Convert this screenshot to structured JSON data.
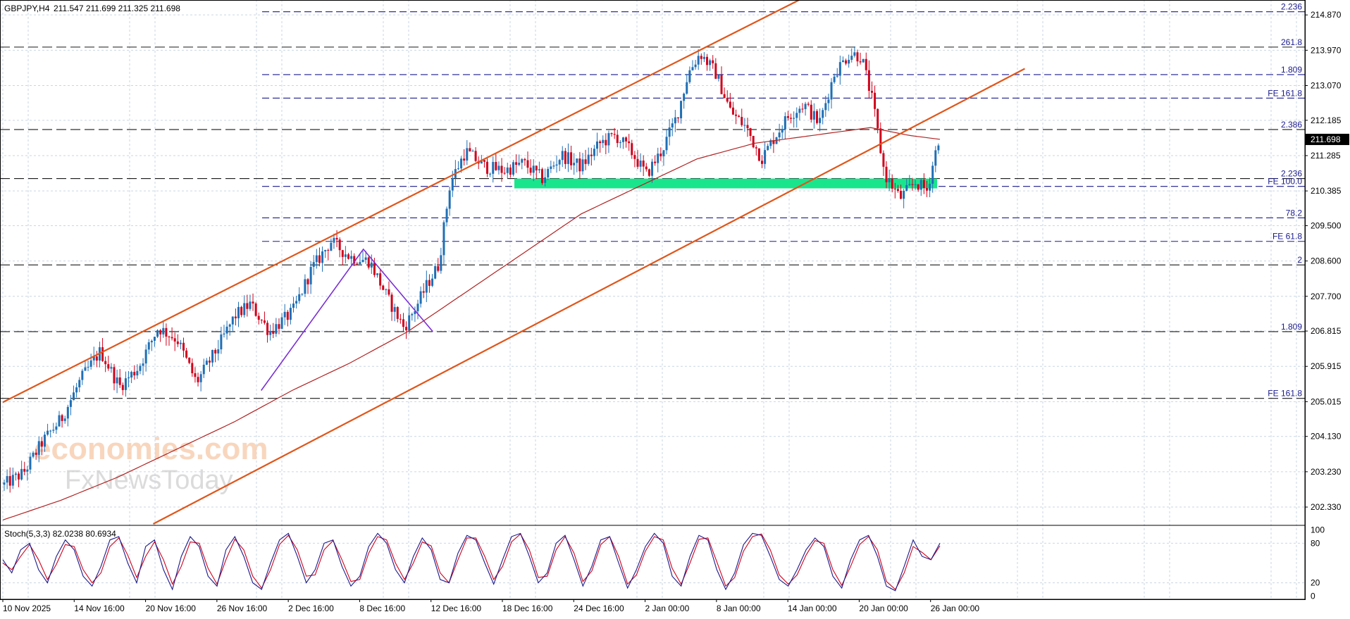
{
  "header": {
    "symbol": "GBPJPY,H4",
    "ohlc": "211.547 211.699 211.325 211.698"
  },
  "watermark": {
    "line1": "economies.com",
    "line2": "FxNewsToday"
  },
  "colors": {
    "bull": "#1f6fb5",
    "bear": "#d0021b",
    "channel": "#e0561a",
    "ma": "#b22222",
    "zone": "#19e68c",
    "zigzag": "#7b2fd4",
    "level_line": "#1a1a8c",
    "stoch_k": "#1a1a8c",
    "stoch_d": "#d0021b",
    "grid": "#c9d6e3",
    "price_tag_bg": "#000000",
    "price_tag_fg": "#ffffff"
  },
  "chart_data": [
    {
      "type": "candlestick",
      "title": "",
      "y_axis": {
        "min": 201.9,
        "max": 215.25,
        "ticks": [
          "214.870",
          "213.970",
          "213.070",
          "212.185",
          "211.285",
          "210.385",
          "209.500",
          "208.600",
          "207.700",
          "206.815",
          "205.915",
          "205.015",
          "204.130",
          "203.230",
          "202.330"
        ]
      },
      "x_axis": {
        "ticks": [
          "10 Nov 2025",
          "14 Nov 16:00",
          "20 Nov 16:00",
          "26 Nov 16:00",
          "2 Dec 16:00",
          "8 Dec 16:00",
          "12 Dec 16:00",
          "18 Dec 16:00",
          "24 Dec 16:00",
          "2 Jan 00:00",
          "8 Jan 00:00",
          "14 Jan 00:00",
          "20 Jan 00:00",
          "26 Jan 00:00"
        ],
        "tick_bar_index": [
          0,
          24,
          48,
          72,
          96,
          120,
          144,
          168,
          192,
          216,
          240,
          264,
          288,
          312
        ],
        "total_bars": 324
      },
      "current_price": "211.698",
      "path": [
        [
          0,
          202.9
        ],
        [
          10,
          203.2
        ],
        [
          20,
          204.0
        ],
        [
          30,
          204.6
        ],
        [
          40,
          205.6
        ],
        [
          50,
          206.3
        ],
        [
          60,
          205.4
        ],
        [
          70,
          205.9
        ],
        [
          80,
          206.9
        ],
        [
          90,
          206.6
        ],
        [
          100,
          205.5
        ],
        [
          110,
          206.3
        ],
        [
          120,
          207.2
        ],
        [
          128,
          207.5
        ],
        [
          138,
          206.8
        ],
        [
          150,
          207.3
        ],
        [
          160,
          208.4
        ],
        [
          170,
          209.1
        ],
        [
          180,
          208.7
        ],
        [
          190,
          208.6
        ],
        [
          200,
          207.6
        ],
        [
          208,
          206.9
        ],
        [
          215,
          207.5
        ],
        [
          220,
          208.0
        ],
        [
          226,
          208.5
        ],
        [
          232,
          210.6
        ],
        [
          240,
          211.4
        ],
        [
          250,
          211.0
        ],
        [
          260,
          210.9
        ],
        [
          270,
          211.1
        ],
        [
          280,
          210.7
        ],
        [
          290,
          211.3
        ],
        [
          300,
          211.0
        ],
        [
          310,
          211.6
        ],
        [
          318,
          211.8
        ],
        [
          326,
          211.4
        ],
        [
          334,
          210.8
        ],
        [
          342,
          211.4
        ],
        [
          350,
          212.3
        ],
        [
          356,
          213.4
        ],
        [
          362,
          213.9
        ],
        [
          370,
          213.4
        ],
        [
          378,
          212.4
        ],
        [
          386,
          212.0
        ],
        [
          394,
          211.2
        ],
        [
          400,
          211.7
        ],
        [
          408,
          212.3
        ],
        [
          416,
          212.6
        ],
        [
          424,
          212.1
        ],
        [
          432,
          213.4
        ],
        [
          440,
          213.9
        ],
        [
          446,
          213.8
        ],
        [
          452,
          212.6
        ],
        [
          458,
          210.8
        ],
        [
          466,
          210.2
        ],
        [
          474,
          210.6
        ],
        [
          480,
          210.4
        ],
        [
          486,
          211.7
        ]
      ],
      "ma": [
        [
          0,
          202.0
        ],
        [
          30,
          202.5
        ],
        [
          60,
          203.1
        ],
        [
          90,
          203.8
        ],
        [
          120,
          204.5
        ],
        [
          150,
          205.3
        ],
        [
          180,
          206.0
        ],
        [
          210,
          206.8
        ],
        [
          240,
          207.8
        ],
        [
          270,
          208.8
        ],
        [
          300,
          209.8
        ],
        [
          330,
          210.5
        ],
        [
          360,
          211.2
        ],
        [
          390,
          211.6
        ],
        [
          420,
          211.8
        ],
        [
          450,
          212.0
        ],
        [
          470,
          211.8
        ],
        [
          486,
          211.7
        ]
      ],
      "channel_lines": [
        {
          "from": [
            0,
            205.0
          ],
          "to": [
            415,
            215.3
          ]
        },
        {
          "from": [
            78,
            201.9
          ],
          "to": [
            530,
            213.5
          ]
        }
      ],
      "zone": {
        "from_bar": 268,
        "to_bar": 486,
        "low": 210.45,
        "high": 210.7
      },
      "zigzag": [
        [
          134,
          205.3
        ],
        [
          187,
          208.9
        ],
        [
          223,
          206.8
        ]
      ],
      "levels": [
        {
          "price": 214.95,
          "label": "2.236",
          "full": false,
          "style": "dash"
        },
        {
          "price": 214.05,
          "label": "261.8",
          "full": true,
          "style": "dash-long"
        },
        {
          "price": 213.35,
          "label": "1.809",
          "full": false,
          "style": "dash"
        },
        {
          "price": 212.75,
          "label": "FE 161.8",
          "full": false,
          "style": "dash"
        },
        {
          "price": 211.95,
          "label": "2.386",
          "full": true,
          "style": "dash-long"
        },
        {
          "price": 210.7,
          "label": "2.236",
          "full": true,
          "style": "dash-long"
        },
        {
          "price": 210.5,
          "label": "FE 100.0",
          "full": false,
          "style": "dash"
        },
        {
          "price": 209.7,
          "label": "78.2",
          "full": false,
          "style": "dash"
        },
        {
          "price": 209.1,
          "label": "FE 61.8",
          "full": false,
          "style": "dash"
        },
        {
          "price": 208.5,
          "label": "2",
          "full": true,
          "style": "dash-long"
        },
        {
          "price": 206.8,
          "label": "1.809",
          "full": true,
          "style": "dash-long"
        },
        {
          "price": 205.1,
          "label": "FE 161.8",
          "full": true,
          "style": "dash-long"
        }
      ]
    },
    {
      "type": "line",
      "title": "",
      "indicator_label": "Stoch(5,3,3) 82.0238 80.6934",
      "y_axis": {
        "min": -5,
        "max": 105,
        "ticks": [
          "100",
          "80",
          "20",
          "0"
        ]
      },
      "series": [
        {
          "key": "k",
          "values": [
            55,
            35,
            70,
            80,
            40,
            20,
            60,
            85,
            70,
            30,
            15,
            45,
            85,
            90,
            50,
            20,
            75,
            85,
            40,
            10,
            60,
            90,
            75,
            30,
            15,
            70,
            90,
            60,
            20,
            10,
            50,
            85,
            95,
            60,
            20,
            40,
            80,
            85,
            45,
            15,
            30,
            75,
            95,
            80,
            40,
            20,
            60,
            88,
            70,
            25,
            20,
            65,
            92,
            85,
            50,
            18,
            55,
            90,
            95,
            60,
            20,
            35,
            80,
            92,
            55,
            15,
            45,
            85,
            90,
            50,
            12,
            40,
            75,
            95,
            80,
            30,
            15,
            60,
            92,
            85,
            40,
            10,
            35,
            78,
            95,
            92,
            60,
            25,
            15,
            40,
            70,
            88,
            75,
            30,
            12,
            55,
            85,
            92,
            60,
            15,
            8,
            45,
            85,
            60,
            55,
            80
          ]
        },
        {
          "key": "d",
          "values": [
            50,
            40,
            60,
            78,
            55,
            25,
            48,
            78,
            75,
            40,
            20,
            35,
            75,
            88,
            62,
            28,
            60,
            82,
            55,
            18,
            45,
            82,
            80,
            42,
            18,
            55,
            86,
            70,
            30,
            12,
            40,
            78,
            92,
            70,
            30,
            32,
            70,
            84,
            55,
            22,
            25,
            65,
            90,
            85,
            50,
            25,
            50,
            82,
            76,
            35,
            20,
            55,
            88,
            88,
            60,
            25,
            45,
            82,
            94,
            70,
            28,
            30,
            70,
            90,
            65,
            22,
            38,
            78,
            90,
            60,
            18,
            32,
            68,
            90,
            85,
            42,
            18,
            50,
            86,
            88,
            52,
            15,
            28,
            68,
            90,
            94,
            70,
            32,
            18,
            32,
            62,
            84,
            80,
            40,
            16,
            45,
            78,
            90,
            70,
            22,
            10,
            35,
            75,
            66,
            55,
            76
          ]
        }
      ]
    }
  ]
}
